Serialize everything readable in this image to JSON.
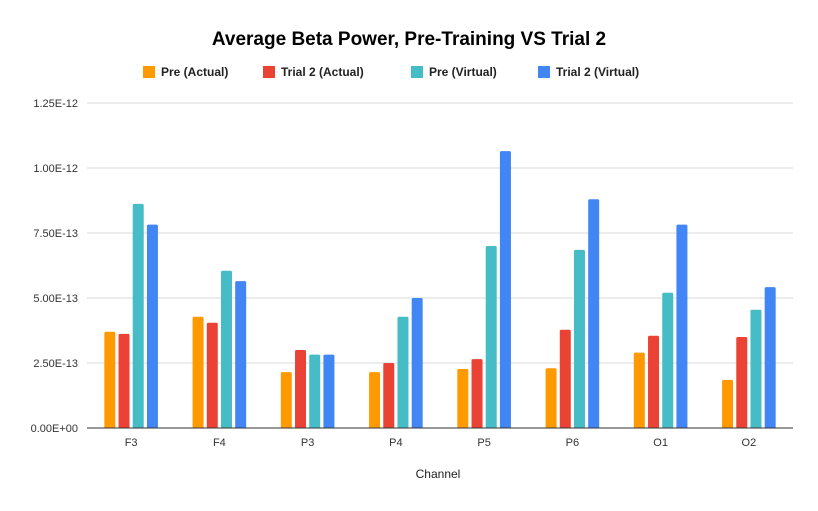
{
  "chart_data": {
    "type": "bar",
    "title": "Average Beta Power, Pre-Training VS Trial 2",
    "xlabel": "Channel",
    "ylabel": "",
    "categories": [
      "F3",
      "F4",
      "P3",
      "P4",
      "P5",
      "P6",
      "O1",
      "O2"
    ],
    "ylim": [
      0,
      1.25e-12
    ],
    "y_ticks": [
      0,
      2.5e-13,
      5e-13,
      7.5e-13,
      1e-12,
      1.25e-12
    ],
    "y_tick_labels": [
      "0.00E+00",
      "2.50E-13",
      "5.00E-13",
      "7.50E-13",
      "1.00E-12",
      "1.25E-12"
    ],
    "grid": true,
    "legend_position": "top",
    "series": [
      {
        "name": "Pre (Actual)",
        "color": "#ff9900",
        "values": [
          3.7e-13,
          4.28e-13,
          2.15e-13,
          2.15e-13,
          2.27e-13,
          2.3e-13,
          2.9e-13,
          1.85e-13
        ]
      },
      {
        "name": "Trial 2 (Actual)",
        "color": "#ea4335",
        "values": [
          3.62e-13,
          4.05e-13,
          3e-13,
          2.5e-13,
          2.65e-13,
          3.78e-13,
          3.55e-13,
          3.5e-13
        ]
      },
      {
        "name": "Pre (Virtual)",
        "color": "#46bdc6",
        "values": [
          8.62e-13,
          6.05e-13,
          2.82e-13,
          4.28e-13,
          7e-13,
          6.85e-13,
          5.2e-13,
          4.55e-13
        ]
      },
      {
        "name": "Trial 2 (Virtual)",
        "color": "#4285f4",
        "values": [
          7.82e-13,
          5.65e-13,
          2.82e-13,
          5e-13,
          1.065e-12,
          8.8e-13,
          7.82e-13,
          5.42e-13
        ]
      }
    ]
  }
}
